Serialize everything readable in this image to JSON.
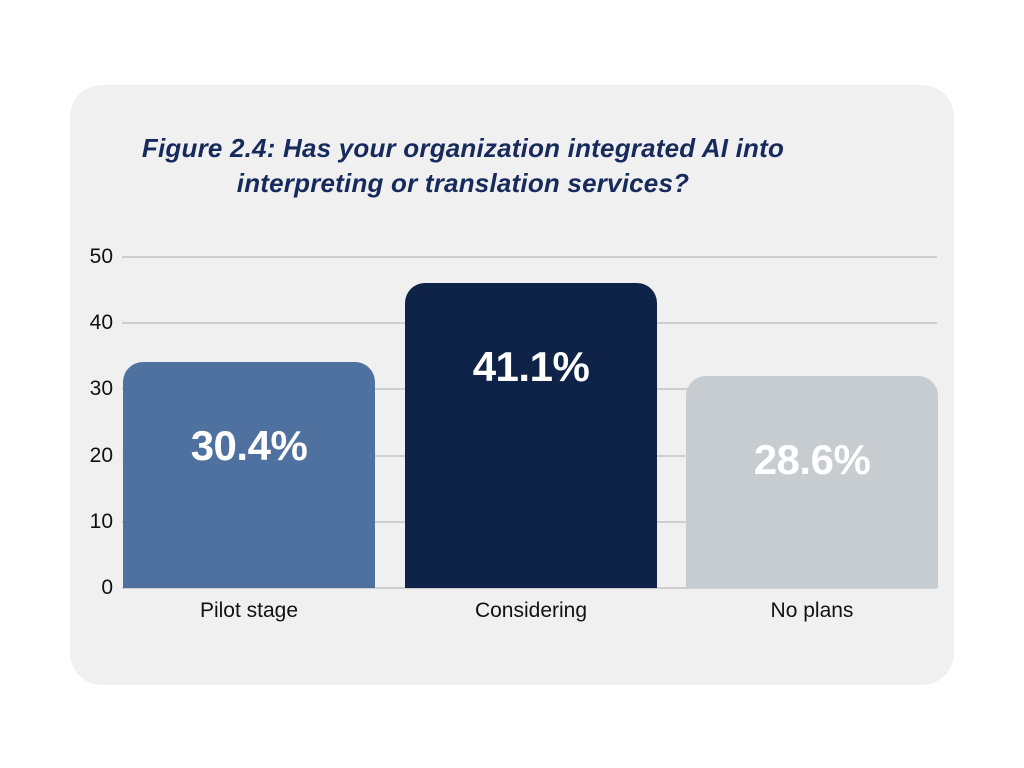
{
  "title": {
    "line1": "Figure 2.4: Has your organization integrated AI into",
    "line2": "interpreting or translation services?"
  },
  "chart_data": {
    "type": "bar",
    "title": "Figure 2.4: Has your organization integrated AI into interpreting or translation services?",
    "categories": [
      "Pilot stage",
      "Considering",
      "No plans"
    ],
    "values": [
      30.4,
      41.1,
      28.6
    ],
    "value_labels": [
      "30.4%",
      "41.1%",
      "28.6%"
    ],
    "series_unit": "percent of respondents",
    "bar_colors": [
      "#4f719f",
      "#0f2349",
      "#c7ccd1"
    ],
    "value_label_color": "#ffffff",
    "yticks": [
      0,
      10,
      20,
      30,
      40,
      50
    ],
    "ylim": [
      0,
      50
    ],
    "grid": true,
    "legend_position": "none",
    "xlabel": "",
    "ylabel": "",
    "card_background": "#f0f0f1",
    "gridline_color": "#cfcfcf",
    "title_color": "#172a5c",
    "axis_text_color": "#111111"
  }
}
